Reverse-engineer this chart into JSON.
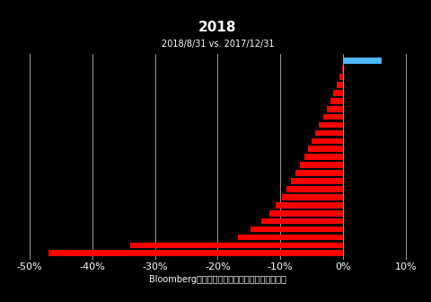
{
  "title": "2018",
  "subtitle": "2018/8/31 vs. 2017/12/31",
  "xlabel": "Bloombergより住友商事グローバルリサーチ作成",
  "xlim": [
    -0.52,
    0.12
  ],
  "xticks": [
    -0.5,
    -0.4,
    -0.3,
    -0.2,
    -0.1,
    0.0,
    0.1
  ],
  "xtick_labels": [
    "-50%",
    "-40%",
    "-30%",
    "-20%",
    "-10%",
    "0%",
    "10%"
  ],
  "background_color": "#000000",
  "text_color": "#ffffff",
  "grid_color": "#ffffff",
  "bar_values": [
    -0.47,
    -0.34,
    -0.168,
    -0.148,
    -0.13,
    -0.118,
    -0.108,
    -0.098,
    -0.09,
    -0.083,
    -0.076,
    -0.069,
    -0.062,
    -0.056,
    -0.05,
    -0.044,
    -0.038,
    -0.032,
    -0.026,
    -0.02,
    -0.015,
    -0.01,
    -0.006,
    -0.002,
    0.062
  ],
  "bar_colors": [
    "#ff0000",
    "#ff0000",
    "#ff0000",
    "#ff0000",
    "#ff0000",
    "#ff0000",
    "#ff0000",
    "#ff0000",
    "#ff0000",
    "#ff0000",
    "#ff0000",
    "#ff0000",
    "#ff0000",
    "#ff0000",
    "#ff0000",
    "#ff0000",
    "#ff0000",
    "#ff0000",
    "#ff0000",
    "#ff0000",
    "#ff0000",
    "#ff0000",
    "#ff0000",
    "#ff0000",
    "#4db8ff"
  ],
  "title_fontsize": 11,
  "subtitle_fontsize": 7,
  "xlabel_fontsize": 7,
  "tick_fontsize": 8,
  "bar_height": 0.75
}
